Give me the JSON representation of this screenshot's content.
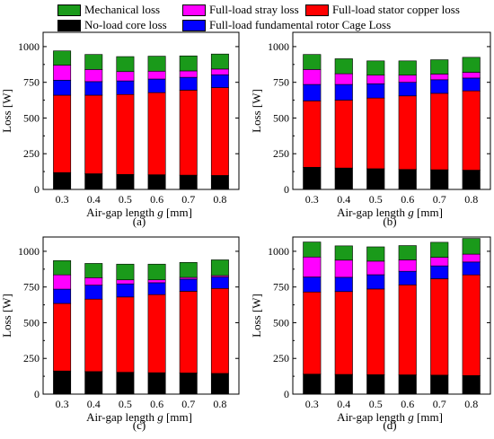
{
  "colors": {
    "mechanical": "#1a9a1a",
    "stray": "#ff00ff",
    "copper": "#ff0000",
    "cage": "#0000ff",
    "core": "#000000"
  },
  "legend": [
    {
      "key": "mechanical",
      "label": "Mechanical loss"
    },
    {
      "key": "stray",
      "label": "Full-load stray loss"
    },
    {
      "key": "copper",
      "label": "Full-load stator copper loss"
    },
    {
      "key": "core",
      "label": "No-load core loss"
    },
    {
      "key": "cage",
      "label": "Full-load fundamental rotor Cage Loss"
    }
  ],
  "chart_data": [
    {
      "type": "bar",
      "stacked": true,
      "panel_label": "(a)",
      "xlabel_prefix": "Air-gap length ",
      "xlabel_var": "g",
      "xlabel_suffix": " [mm]",
      "ylabel": "Loss [W]",
      "ylim": [
        0,
        1100
      ],
      "yticks": [
        0,
        250,
        500,
        750,
        1000
      ],
      "categories": [
        "0.3",
        "0.4",
        "0.5",
        "0.6",
        "0.7",
        "0.8"
      ],
      "series": [
        {
          "key": "core",
          "name": "No-load core loss",
          "values": [
            118,
            110,
            105,
            103,
            100,
            98
          ]
        },
        {
          "key": "copper",
          "name": "Full-load stator copper loss",
          "values": [
            542,
            550,
            560,
            575,
            595,
            615
          ]
        },
        {
          "key": "cage",
          "name": "Full-load fundamental rotor Cage Loss",
          "values": [
            105,
            95,
            95,
            95,
            90,
            90
          ]
        },
        {
          "key": "stray",
          "name": "Full-load stray loss",
          "values": [
            105,
            85,
            65,
            55,
            45,
            40
          ]
        },
        {
          "key": "mechanical",
          "name": "Mechanical loss",
          "values": [
            100,
            105,
            105,
            105,
            105,
            105
          ]
        }
      ]
    },
    {
      "type": "bar",
      "stacked": true,
      "panel_label": "(b)",
      "xlabel_prefix": "Air-gap length ",
      "xlabel_var": "g",
      "xlabel_suffix": " [mm]",
      "ylabel": "Loss [W]",
      "ylim": [
        0,
        1100
      ],
      "yticks": [
        0,
        250,
        500,
        750,
        1000
      ],
      "categories": [
        "0.3",
        "0.4",
        "0.5",
        "0.6",
        "0.7",
        "0.8"
      ],
      "series": [
        {
          "key": "core",
          "name": "No-load core loss",
          "values": [
            155,
            150,
            145,
            140,
            138,
            135
          ]
        },
        {
          "key": "copper",
          "name": "Full-load stator copper loss",
          "values": [
            465,
            475,
            495,
            515,
            535,
            555
          ]
        },
        {
          "key": "cage",
          "name": "Full-load fundamental rotor Cage Loss",
          "values": [
            115,
            110,
            100,
            95,
            95,
            90
          ]
        },
        {
          "key": "stray",
          "name": "Full-load stray loss",
          "values": [
            105,
            75,
            60,
            50,
            40,
            40
          ]
        },
        {
          "key": "mechanical",
          "name": "Mechanical loss",
          "values": [
            105,
            105,
            100,
            100,
            100,
            105
          ]
        }
      ]
    },
    {
      "type": "bar",
      "stacked": true,
      "panel_label": "(c)",
      "xlabel_prefix": "Air-gap length ",
      "xlabel_var": "g",
      "xlabel_suffix": " [mm]",
      "ylabel": "Loss [W]",
      "ylim": [
        0,
        1100
      ],
      "yticks": [
        0,
        250,
        500,
        750,
        1000
      ],
      "categories": [
        "0.3",
        "0.4",
        "0.5",
        "0.6",
        "0.7",
        "0.8"
      ],
      "series": [
        {
          "key": "core",
          "name": "No-load core loss",
          "values": [
            162,
            158,
            153,
            150,
            148,
            145
          ]
        },
        {
          "key": "copper",
          "name": "Full-load stator copper loss",
          "values": [
            473,
            507,
            527,
            547,
            572,
            595
          ]
        },
        {
          "key": "cage",
          "name": "Full-load fundamental rotor Cage Loss",
          "values": [
            100,
            98,
            92,
            83,
            85,
            80
          ]
        },
        {
          "key": "stray",
          "name": "Full-load stray loss",
          "values": [
            100,
            52,
            28,
            20,
            12,
            10
          ]
        },
        {
          "key": "mechanical",
          "name": "Mechanical loss",
          "values": [
            100,
            100,
            110,
            110,
            105,
            110
          ]
        }
      ]
    },
    {
      "type": "bar",
      "stacked": true,
      "panel_label": "(d)",
      "xlabel_prefix": "Air-gap length ",
      "xlabel_var": "g",
      "xlabel_suffix": " [mm]",
      "ylabel": "Loss [W]",
      "ylim": [
        0,
        1100
      ],
      "yticks": [
        0,
        250,
        500,
        750,
        1000
      ],
      "categories": [
        "0.3",
        "0.4",
        "0.5",
        "0.6",
        "0.7",
        "0.8"
      ],
      "series": [
        {
          "key": "core",
          "name": "No-load core loss",
          "values": [
            140,
            138,
            136,
            135,
            133,
            130
          ]
        },
        {
          "key": "copper",
          "name": "Full-load stator copper loss",
          "values": [
            575,
            580,
            600,
            630,
            675,
            705
          ]
        },
        {
          "key": "cage",
          "name": "Full-load fundamental rotor Cage Loss",
          "values": [
            105,
            100,
            100,
            95,
            90,
            90
          ]
        },
        {
          "key": "stray",
          "name": "Full-load stray loss",
          "values": [
            140,
            120,
            95,
            80,
            60,
            55
          ]
        },
        {
          "key": "mechanical",
          "name": "Mechanical loss",
          "values": [
            105,
            100,
            100,
            100,
            105,
            110
          ]
        }
      ]
    }
  ]
}
